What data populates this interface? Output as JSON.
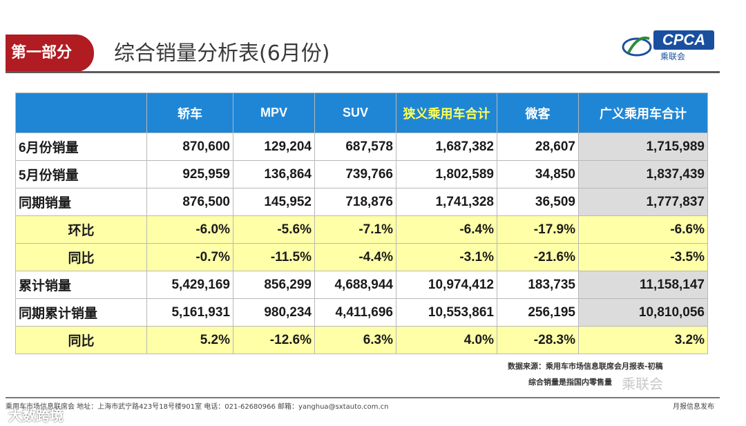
{
  "header": {
    "section": "第一部分",
    "title": "综合销量分析表(6月份)",
    "logo_text": "CPCA",
    "logo_sub": "乘联会"
  },
  "table": {
    "columns": [
      "",
      "轿车",
      "MPV",
      "SUV",
      "狭义乘用车合计",
      "微客",
      "广义乘用车合计"
    ],
    "rows": [
      {
        "label": "6月份销量",
        "values": [
          "870,600",
          "129,204",
          "687,578",
          "1,687,382",
          "28,607",
          "1,715,989"
        ]
      },
      {
        "label": "5月份销量",
        "values": [
          "925,959",
          "136,864",
          "739,766",
          "1,802,589",
          "34,850",
          "1,837,439"
        ]
      },
      {
        "label": "同期销量",
        "values": [
          "876,500",
          "145,952",
          "718,876",
          "1,741,328",
          "36,509",
          "1,777,837"
        ]
      },
      {
        "label": "环比",
        "values": [
          "-6.0%",
          "-5.6%",
          "-7.1%",
          "-6.4%",
          "-17.9%",
          "-6.6%"
        ]
      },
      {
        "label": "同比",
        "values": [
          "-0.7%",
          "-11.5%",
          "-4.4%",
          "-3.1%",
          "-21.6%",
          "-3.5%"
        ]
      },
      {
        "label": "累计销量",
        "values": [
          "5,429,169",
          "856,299",
          "4,688,944",
          "10,974,412",
          "183,735",
          "11,158,147"
        ]
      },
      {
        "label": "同期累计销量",
        "values": [
          "5,161,931",
          "980,234",
          "4,411,696",
          "10,553,861",
          "256,195",
          "10,810,056"
        ]
      },
      {
        "label": "同比",
        "values": [
          "5.2%",
          "-12.6%",
          "6.3%",
          "4.0%",
          "-28.3%",
          "3.2%"
        ]
      }
    ]
  },
  "notes": {
    "line1": "数据来源：乘用车市场信息联席会月报表-初稿",
    "line2": "综合销量是指国内零售量"
  },
  "watermark": "乘联会",
  "footer": {
    "left": "乘用车市场信息联席会   地址：上海市武宁路423号18号楼901室  电话：021-62680966   邮箱：yanghua@sxtauto.com.cn",
    "right": "月报信息发布"
  },
  "watermark2": "大数跨境",
  "colors": {
    "header_blue": "#1f86d6",
    "badge_red": "#b01c22",
    "highlight_yellow": "#ffffa8",
    "gray_cell": "#dcdcdc"
  }
}
